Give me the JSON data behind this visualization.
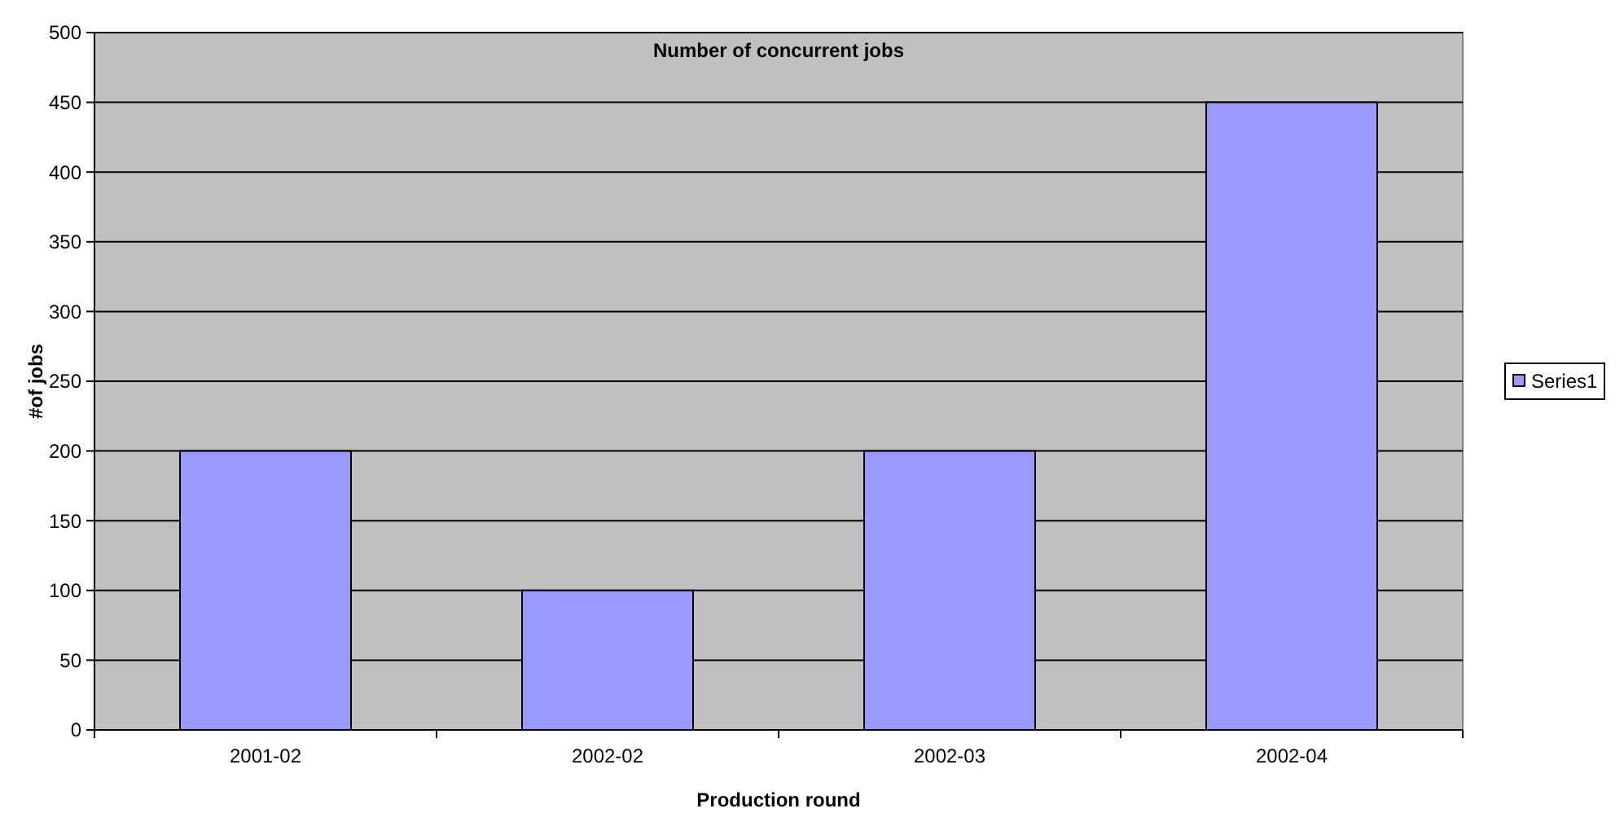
{
  "chart_data": {
    "type": "bar",
    "title": "Number of concurrent jobs",
    "xlabel": "Production round",
    "ylabel": "#of jobs",
    "categories": [
      "2001-02",
      "2002-02",
      "2002-03",
      "2002-04"
    ],
    "series": [
      {
        "name": "Series1",
        "color": "#9999ff",
        "values": [
          200,
          100,
          200,
          450
        ]
      }
    ],
    "ylim": [
      0,
      500
    ],
    "yticks": [
      0,
      50,
      100,
      150,
      200,
      250,
      300,
      350,
      400,
      450,
      500
    ],
    "grid": "y",
    "legend": "right"
  }
}
